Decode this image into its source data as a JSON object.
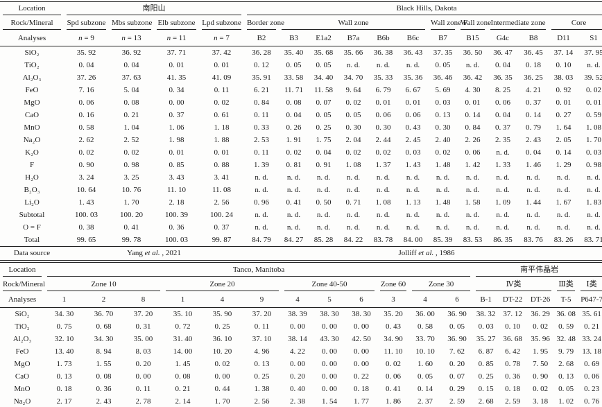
{
  "top_table": {
    "corner_labels": [
      "Location",
      "Rock/Mineral",
      "Analyses"
    ],
    "location_groups": [
      {
        "label": "南阳山",
        "span": 4
      },
      {
        "label": "Black Hills, Dakota",
        "span": 12
      }
    ],
    "zone_groups": [
      {
        "label": "Spd subzone",
        "span": 1
      },
      {
        "label": "Mbs subzone",
        "span": 1
      },
      {
        "label": "Elb subzone",
        "span": 1
      },
      {
        "label": "Lpd subzone",
        "span": 1
      },
      {
        "label": "Border zone",
        "span": 1
      },
      {
        "label": "Wall zone",
        "span": 5
      },
      {
        "label": "Wall zone F",
        "span": 1
      },
      {
        "label": "Wall zone",
        "span": 1
      },
      {
        "label": "Intermediate zone",
        "span": 2
      },
      {
        "label": "Core",
        "span": 2
      }
    ],
    "analyses": [
      "n = 9",
      "n = 13",
      "n = 11",
      "n = 7",
      "B2",
      "B3",
      "E1a2",
      "B7a",
      "B6b",
      "B6c",
      "B7",
      "B15",
      "G4c",
      "B8",
      "D11",
      "S1"
    ],
    "rows": [
      {
        "label": "SiO₂",
        "values": [
          "35. 92",
          "36. 92",
          "37. 71",
          "37. 42",
          "36. 28",
          "35. 40",
          "35. 68",
          "35. 66",
          "36. 38",
          "36. 43",
          "37. 35",
          "36. 50",
          "36. 47",
          "36. 45",
          "37. 14",
          "37. 95"
        ]
      },
      {
        "label": "TiO₂",
        "values": [
          "0. 04",
          "0. 04",
          "0. 01",
          "0. 01",
          "0. 12",
          "0. 05",
          "0. 05",
          "n. d.",
          "n. d.",
          "n. d.",
          "0. 05",
          "n. d.",
          "0. 04",
          "0. 18",
          "0. 10",
          "n. d."
        ]
      },
      {
        "label": "Al₂O₃",
        "values": [
          "37. 26",
          "37. 63",
          "41. 35",
          "41. 09",
          "35. 91",
          "33. 58",
          "34. 40",
          "34. 70",
          "35. 33",
          "35. 36",
          "36. 46",
          "36. 42",
          "36. 35",
          "36. 25",
          "38. 03",
          "39. 52"
        ]
      },
      {
        "label": "FeO",
        "values": [
          "7. 16",
          "5. 04",
          "0. 34",
          "0. 11",
          "6. 21",
          "11. 71",
          "11. 58",
          "9. 64",
          "6. 79",
          "6. 67",
          "5. 69",
          "4. 30",
          "8. 25",
          "4. 21",
          "0. 92",
          "0. 02"
        ]
      },
      {
        "label": "MgO",
        "values": [
          "0. 06",
          "0. 08",
          "0. 00",
          "0. 02",
          "0. 84",
          "0. 08",
          "0. 07",
          "0. 02",
          "0. 01",
          "0. 01",
          "0. 03",
          "0. 01",
          "0. 06",
          "0. 37",
          "0. 01",
          "0. 01"
        ]
      },
      {
        "label": "CaO",
        "values": [
          "0. 16",
          "0. 21",
          "0. 37",
          "0. 61",
          "0. 11",
          "0. 04",
          "0. 05",
          "0. 05",
          "0. 06",
          "0. 06",
          "0. 13",
          "0. 14",
          "0. 04",
          "0. 14",
          "0. 27",
          "0. 59"
        ]
      },
      {
        "label": "MnO",
        "values": [
          "0. 58",
          "1. 04",
          "1. 06",
          "1. 18",
          "0. 33",
          "0. 26",
          "0. 25",
          "0. 30",
          "0. 30",
          "0. 43",
          "0. 30",
          "0. 84",
          "0. 37",
          "0. 79",
          "1. 64",
          "1. 08"
        ]
      },
      {
        "label": "Na₂O",
        "values": [
          "2. 62",
          "2. 52",
          "1. 98",
          "1. 88",
          "2. 53",
          "1. 91",
          "1. 75",
          "2. 04",
          "2. 44",
          "2. 45",
          "2. 40",
          "2. 26",
          "2. 35",
          "2. 43",
          "2. 05",
          "1. 70"
        ]
      },
      {
        "label": "K₂O",
        "values": [
          "0. 02",
          "0. 02",
          "0. 01",
          "0. 01",
          "0. 11",
          "0. 02",
          "0. 04",
          "0. 02",
          "0. 02",
          "0. 03",
          "0. 02",
          "0. 06",
          "n. d.",
          "0. 04",
          "0. 14",
          "0. 03"
        ]
      },
      {
        "label": "F",
        "values": [
          "0. 90",
          "0. 98",
          "0. 85",
          "0. 88",
          "1. 39",
          "0. 81",
          "0. 91",
          "1. 08",
          "1. 37",
          "1. 43",
          "1. 48",
          "1. 42",
          "1. 33",
          "1. 46",
          "1. 29",
          "0. 98"
        ]
      },
      {
        "label": "H₂O",
        "values": [
          "3. 24",
          "3. 25",
          "3. 43",
          "3. 41",
          "n. d.",
          "n. d.",
          "n. d.",
          "n. d.",
          "n. d.",
          "n. d.",
          "n. d.",
          "n. d.",
          "n. d.",
          "n. d.",
          "n. d.",
          "n. d."
        ]
      },
      {
        "label": "B₂O₃",
        "values": [
          "10. 64",
          "10. 76",
          "11. 10",
          "11. 08",
          "n. d.",
          "n. d.",
          "n. d.",
          "n. d.",
          "n. d.",
          "n. d.",
          "n. d.",
          "n. d.",
          "n. d.",
          "n. d.",
          "n. d.",
          "n. d."
        ]
      },
      {
        "label": "Li₂O",
        "values": [
          "1. 43",
          "1. 70",
          "2. 18",
          "2. 56",
          "0. 96",
          "0. 41",
          "0. 50",
          "0. 71",
          "1. 08",
          "1. 13",
          "1. 48",
          "1. 58",
          "1. 09",
          "1. 44",
          "1. 67",
          "1. 83"
        ]
      },
      {
        "label": "Subtotal",
        "values": [
          "100. 03",
          "100. 20",
          "100. 39",
          "100. 24",
          "n. d.",
          "n. d.",
          "n. d.",
          "n. d.",
          "n. d.",
          "n. d.",
          "n. d.",
          "n. d.",
          "n. d.",
          "n. d.",
          "n. d.",
          "n. d."
        ]
      },
      {
        "label": "O = F",
        "values": [
          "0. 38",
          "0. 41",
          "0. 36",
          "0. 37",
          "n. d.",
          "n. d.",
          "n. d.",
          "n. d.",
          "n. d.",
          "n. d.",
          "n. d.",
          "n. d.",
          "n. d.",
          "n. d.",
          "n. d.",
          "n. d."
        ]
      },
      {
        "label": "Total",
        "values": [
          "99. 65",
          "99. 78",
          "100. 03",
          "99. 87",
          "84. 79",
          "84. 27",
          "85. 28",
          "84. 22",
          "83. 78",
          "84. 00",
          "85. 39",
          "83. 53",
          "86. 35",
          "83. 76",
          "83. 26",
          "83. 71"
        ]
      }
    ],
    "data_source": {
      "label": "Data source",
      "entries": [
        {
          "label": "Yang et al. , 2021",
          "span": 4
        },
        {
          "label": "Jolliff et al. , 1986",
          "span": 12
        }
      ]
    }
  },
  "bottom_table": {
    "corner_labels": [
      "Location",
      "Rock/Mineral",
      "Analyses"
    ],
    "location_groups": [
      {
        "label": "Tanco, Manitoba",
        "span": 12
      },
      {
        "label": "南平伟晶岩",
        "span": 5
      }
    ],
    "zone_groups": [
      {
        "label": "Zone 10",
        "span": 3
      },
      {
        "label": "Zone 20",
        "span": 3
      },
      {
        "label": "Zone 40-50",
        "span": 3
      },
      {
        "label": "Zone 60",
        "span": 1
      },
      {
        "label": "Zone 30",
        "span": 2
      },
      {
        "label": "Ⅳ类",
        "span": 3
      },
      {
        "label": "Ⅲ类",
        "span": 1
      },
      {
        "label": "Ⅰ类",
        "span": 1
      }
    ],
    "analyses": [
      "1",
      "2",
      "8",
      "1",
      "4",
      "9",
      "4",
      "5",
      "6",
      "3",
      "4",
      "6",
      "B-1",
      "DT-22",
      "DT-26",
      "T-5",
      "P647-7"
    ],
    "rows": [
      {
        "label": "SiO₂",
        "values": [
          "34. 30",
          "36. 70",
          "37. 20",
          "35. 10",
          "35. 90",
          "37. 20",
          "38. 39",
          "38. 30",
          "38. 30",
          "35. 20",
          "36. 00",
          "36. 90",
          "38. 32",
          "37. 12",
          "36. 29",
          "36. 08",
          "35. 61"
        ]
      },
      {
        "label": "TiO₂",
        "values": [
          "0. 75",
          "0. 68",
          "0. 31",
          "0. 72",
          "0. 25",
          "0. 11",
          "0. 00",
          "0. 00",
          "0. 00",
          "0. 43",
          "0. 58",
          "0. 05",
          "0. 03",
          "0. 10",
          "0. 02",
          "0. 59",
          "0. 21"
        ]
      },
      {
        "label": "Al₂O₃",
        "values": [
          "32. 10",
          "34. 30",
          "35. 00",
          "31. 40",
          "36. 10",
          "37. 10",
          "38. 14",
          "43. 30",
          "42. 50",
          "34. 90",
          "33. 70",
          "36. 90",
          "35. 27",
          "36. 68",
          "35. 96",
          "32. 48",
          "33. 24"
        ]
      },
      {
        "label": "FeO",
        "values": [
          "13. 40",
          "8. 94",
          "8. 03",
          "14. 00",
          "10. 20",
          "4. 96",
          "4. 22",
          "0. 00",
          "0. 00",
          "11. 10",
          "10. 10",
          "7. 62",
          "6. 87",
          "6. 42",
          "1. 95",
          "9. 79",
          "13. 18"
        ]
      },
      {
        "label": "MgO",
        "values": [
          "1. 73",
          "1. 55",
          "0. 20",
          "1. 45",
          "0. 02",
          "0. 13",
          "0. 00",
          "0. 00",
          "0. 00",
          "0. 02",
          "1. 60",
          "0. 20",
          "0. 85",
          "0. 78",
          "7. 50",
          "2. 68",
          "0. 69"
        ]
      },
      {
        "label": "CaO",
        "values": [
          "0. 13",
          "0. 08",
          "0. 00",
          "0. 08",
          "0. 00",
          "0. 25",
          "0. 20",
          "0. 00",
          "0. 22",
          "0. 06",
          "0. 05",
          "0. 07",
          "0. 25",
          "0. 36",
          "0. 90",
          "0. 13",
          "0. 06"
        ]
      },
      {
        "label": "MnO",
        "values": [
          "0. 18",
          "0. 36",
          "0. 11",
          "0. 21",
          "0. 44",
          "1. 38",
          "0. 40",
          "0. 00",
          "0. 18",
          "0. 41",
          "0. 14",
          "0. 29",
          "0. 15",
          "0. 18",
          "0. 02",
          "0. 05",
          "0. 23"
        ]
      },
      {
        "label": "Na₂O",
        "values": [
          "2. 17",
          "2. 43",
          "2. 78",
          "2. 14",
          "1. 70",
          "2. 56",
          "2. 38",
          "1. 54",
          "1. 77",
          "1. 86",
          "2. 37",
          "2. 59",
          "2. 68",
          "2. 59",
          "3. 18",
          "1. 02",
          "0. 76"
        ]
      }
    ],
    "data_source": null
  }
}
